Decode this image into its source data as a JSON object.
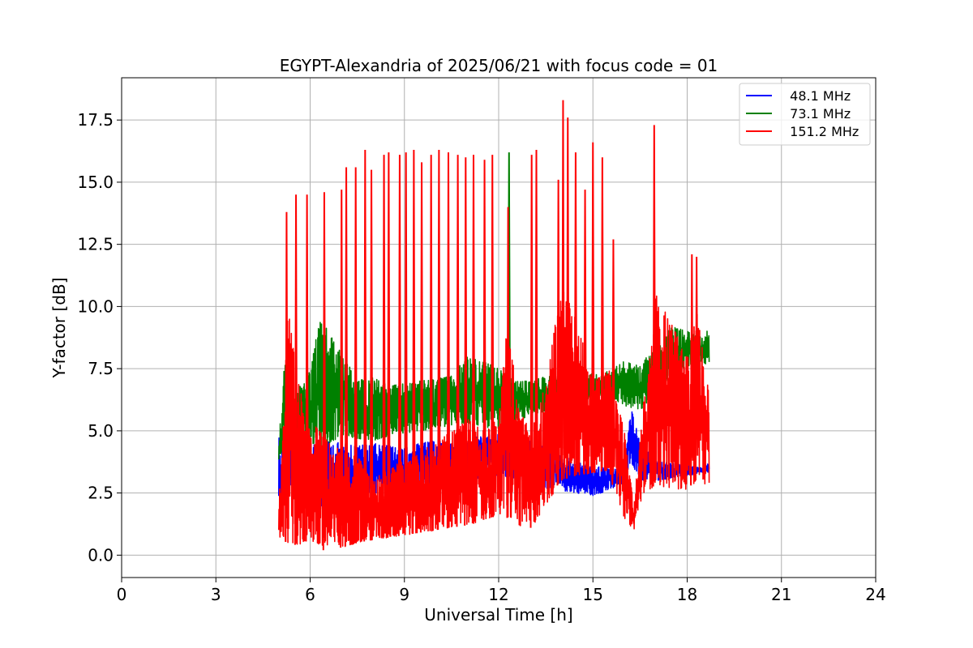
{
  "chart_data": {
    "type": "line",
    "title": "EGYPT-Alexandria of 2025/06/21 with focus code = 01",
    "xlabel": "Universal Time [h]",
    "ylabel": "Y-factor [dB]",
    "xlim": [
      0,
      24
    ],
    "ylim": [
      -0.9,
      19.2
    ],
    "xticks": [
      0,
      3,
      6,
      9,
      12,
      15,
      18,
      21,
      24
    ],
    "xtick_labels": [
      "0",
      "3",
      "6",
      "9",
      "12",
      "15",
      "18",
      "21",
      "24"
    ],
    "yticks": [
      0.0,
      2.5,
      5.0,
      7.5,
      10.0,
      12.5,
      15.0,
      17.5
    ],
    "ytick_labels": [
      "0.0",
      "2.5",
      "5.0",
      "7.5",
      "10.0",
      "12.5",
      "15.0",
      "17.5"
    ],
    "grid": true,
    "legend_position": "top-right",
    "series": [
      {
        "name": "  48.1 MHz",
        "color": "#0000ff",
        "x": [
          5.0,
          5.2,
          5.5,
          5.8,
          6.0,
          6.3,
          6.6,
          7.0,
          7.5,
          8.0,
          8.5,
          9.0,
          9.5,
          10.0,
          10.5,
          11.0,
          11.5,
          12.0,
          12.5,
          13.0,
          13.5,
          14.0,
          14.5,
          15.0,
          15.5,
          16.0,
          16.2,
          16.5,
          17.0,
          17.5,
          18.0,
          18.5,
          18.7
        ],
        "low": [
          1.5,
          2.2,
          2.8,
          2.2,
          2.5,
          1.8,
          1.5,
          2.0,
          2.2,
          2.5,
          2.4,
          2.3,
          2.6,
          2.8,
          2.9,
          3.0,
          3.1,
          3.2,
          3.1,
          2.9,
          2.7,
          2.6,
          2.5,
          2.4,
          2.6,
          2.9,
          3.8,
          3.0,
          3.0,
          3.1,
          3.2,
          3.3,
          3.3
        ],
        "high": [
          5.0,
          4.3,
          4.5,
          4.8,
          4.6,
          4.7,
          4.6,
          4.5,
          4.4,
          4.5,
          4.4,
          4.3,
          4.5,
          4.6,
          4.5,
          4.7,
          4.8,
          4.9,
          4.8,
          4.6,
          4.3,
          4.0,
          3.8,
          3.6,
          3.5,
          3.4,
          6.0,
          4.5,
          3.8,
          3.7,
          3.6,
          3.5,
          3.8
        ]
      },
      {
        "name": "  73.1 MHz",
        "color": "#008000",
        "x": [
          5.0,
          5.2,
          5.5,
          5.8,
          6.0,
          6.3,
          6.6,
          7.0,
          7.5,
          8.0,
          8.5,
          9.0,
          9.5,
          10.0,
          10.5,
          11.0,
          11.5,
          12.0,
          12.5,
          13.0,
          13.5,
          14.0,
          14.5,
          15.0,
          15.5,
          16.0,
          16.5,
          17.0,
          17.5,
          18.0,
          18.5,
          18.7
        ],
        "low": [
          3.8,
          4.5,
          4.2,
          4.8,
          4.5,
          4.3,
          4.5,
          4.8,
          4.7,
          4.6,
          4.8,
          4.9,
          5.0,
          5.1,
          5.2,
          5.3,
          5.2,
          5.0,
          5.3,
          5.6,
          5.8,
          6.0,
          6.2,
          6.3,
          6.4,
          6.0,
          5.8,
          6.5,
          7.2,
          7.6,
          7.8,
          7.5
        ],
        "high": [
          4.5,
          8.0,
          6.5,
          7.0,
          7.5,
          9.5,
          9.0,
          8.2,
          7.0,
          7.2,
          6.8,
          6.9,
          7.0,
          7.1,
          7.2,
          8.0,
          7.8,
          7.5,
          7.0,
          7.0,
          7.2,
          7.3,
          7.2,
          7.3,
          7.4,
          7.8,
          7.6,
          8.5,
          9.2,
          9.0,
          8.8,
          9.2
        ]
      },
      {
        "name": "  151.2 MHz",
        "color": "#ff0000",
        "x": [
          5.0,
          5.3,
          5.6,
          6.0,
          6.3,
          6.6,
          7.0,
          7.5,
          8.0,
          8.5,
          9.0,
          9.5,
          10.0,
          10.5,
          11.0,
          11.5,
          12.0,
          12.3,
          12.6,
          13.0,
          13.5,
          14.0,
          14.5,
          15.0,
          15.5,
          16.0,
          16.3,
          16.6,
          17.0,
          17.5,
          18.0,
          18.3,
          18.7
        ],
        "low": [
          0.7,
          0.5,
          0.4,
          0.6,
          0.3,
          0.1,
          0.3,
          0.5,
          0.6,
          0.7,
          0.8,
          0.9,
          1.0,
          1.1,
          1.2,
          1.4,
          1.6,
          1.5,
          1.2,
          1.0,
          2.0,
          3.0,
          3.2,
          3.3,
          3.4,
          1.5,
          1.0,
          2.5,
          2.8,
          2.7,
          2.6,
          3.0,
          2.8
        ],
        "high": [
          2.0,
          9.9,
          7.0,
          5.5,
          5.0,
          4.5,
          4.2,
          4.0,
          3.0,
          3.5,
          3.8,
          4.2,
          4.5,
          5.0,
          5.5,
          5.0,
          5.5,
          9.7,
          6.0,
          5.0,
          7.0,
          10.8,
          9.5,
          7.0,
          7.5,
          5.0,
          2.0,
          6.0,
          10.5,
          9.3,
          8.0,
          10.0,
          6.5
        ]
      }
    ],
    "spikes": [
      {
        "series": 2,
        "x": 5.25,
        "y": 13.8
      },
      {
        "series": 2,
        "x": 5.55,
        "y": 14.5
      },
      {
        "series": 2,
        "x": 5.9,
        "y": 14.5
      },
      {
        "series": 2,
        "x": 6.45,
        "y": 14.6
      },
      {
        "series": 2,
        "x": 7.0,
        "y": 14.7
      },
      {
        "series": 2,
        "x": 7.15,
        "y": 15.6
      },
      {
        "series": 2,
        "x": 7.45,
        "y": 15.6
      },
      {
        "series": 2,
        "x": 7.75,
        "y": 16.3
      },
      {
        "series": 2,
        "x": 7.95,
        "y": 15.5
      },
      {
        "series": 2,
        "x": 8.35,
        "y": 16.1
      },
      {
        "series": 2,
        "x": 8.5,
        "y": 16.2
      },
      {
        "series": 2,
        "x": 8.85,
        "y": 16.1
      },
      {
        "series": 2,
        "x": 9.05,
        "y": 16.2
      },
      {
        "series": 2,
        "x": 9.3,
        "y": 16.3
      },
      {
        "series": 2,
        "x": 9.55,
        "y": 15.8
      },
      {
        "series": 2,
        "x": 9.85,
        "y": 16.1
      },
      {
        "series": 2,
        "x": 10.1,
        "y": 16.3
      },
      {
        "series": 2,
        "x": 10.4,
        "y": 16.2
      },
      {
        "series": 2,
        "x": 10.7,
        "y": 16.1
      },
      {
        "series": 2,
        "x": 10.95,
        "y": 16.0
      },
      {
        "series": 2,
        "x": 11.2,
        "y": 16.1
      },
      {
        "series": 2,
        "x": 11.55,
        "y": 15.9
      },
      {
        "series": 2,
        "x": 11.8,
        "y": 16.1
      },
      {
        "series": 2,
        "x": 12.3,
        "y": 14.0
      },
      {
        "series": 1,
        "x": 12.33,
        "y": 16.2
      },
      {
        "series": 2,
        "x": 13.05,
        "y": 16.1
      },
      {
        "series": 2,
        "x": 13.2,
        "y": 16.3
      },
      {
        "series": 2,
        "x": 13.9,
        "y": 15.1
      },
      {
        "series": 2,
        "x": 14.05,
        "y": 18.3
      },
      {
        "series": 2,
        "x": 14.2,
        "y": 17.6
      },
      {
        "series": 2,
        "x": 14.45,
        "y": 16.2
      },
      {
        "series": 2,
        "x": 14.75,
        "y": 14.7
      },
      {
        "series": 2,
        "x": 15.0,
        "y": 16.6
      },
      {
        "series": 2,
        "x": 15.3,
        "y": 16.0
      },
      {
        "series": 2,
        "x": 15.65,
        "y": 12.7
      },
      {
        "series": 2,
        "x": 16.95,
        "y": 17.3
      },
      {
        "series": 2,
        "x": 18.15,
        "y": 12.1
      },
      {
        "series": 2,
        "x": 18.3,
        "y": 12.0
      }
    ]
  }
}
